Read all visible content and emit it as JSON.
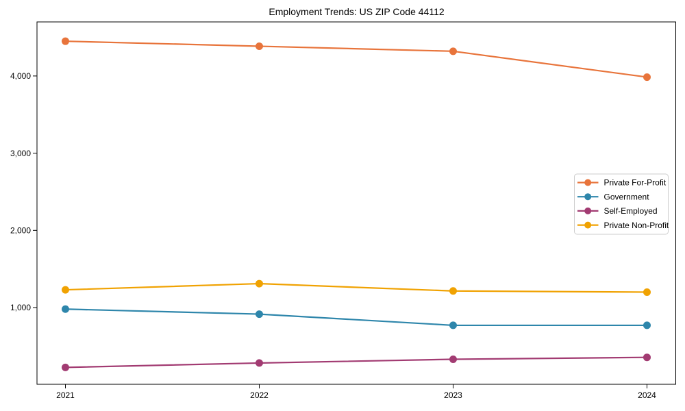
{
  "page": {
    "background_color": "#ffffff"
  },
  "chart_data": {
    "type": "line",
    "title": "Employment Trends: US ZIP Code 44112",
    "x": [
      2021,
      2022,
      2023,
      2024
    ],
    "x_tick_labels": [
      "2021",
      "2022",
      "2023",
      "2024"
    ],
    "y_ticks": [
      1000,
      2000,
      3000,
      4000
    ],
    "y_tick_labels": [
      "1,000",
      "2,000",
      "3,000",
      "4,000"
    ],
    "xlabel": "",
    "ylabel": "",
    "ylim": [
      0,
      4700
    ],
    "grid": false,
    "legend_position": "center-right",
    "axis_color": "#000000",
    "legend_border_color": "#cccccc",
    "series": [
      {
        "name": "Private For-Profit",
        "color": "#E8743B",
        "values": [
          4450,
          4385,
          4320,
          3985
        ]
      },
      {
        "name": "Government",
        "color": "#2E86AB",
        "values": [
          980,
          915,
          770,
          770
        ]
      },
      {
        "name": "Self-Employed",
        "color": "#A23B72",
        "values": [
          225,
          282,
          330,
          355
        ]
      },
      {
        "name": "Private Non-Profit",
        "color": "#F0A202",
        "values": [
          1230,
          1310,
          1215,
          1200
        ]
      }
    ]
  }
}
